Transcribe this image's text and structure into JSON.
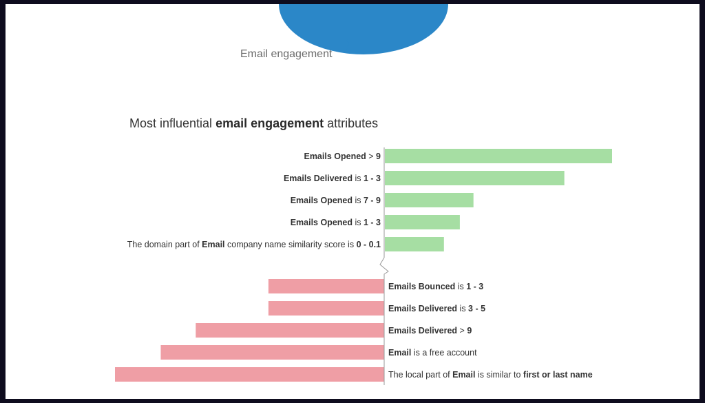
{
  "donut_label": "Email engagement",
  "chart_data": {
    "type": "bar",
    "orientation": "horizontal-diverging",
    "title_parts": [
      {
        "text": "Most influential ",
        "bold": false
      },
      {
        "text": "email engagement",
        "bold": true
      },
      {
        "text": " attributes",
        "bold": false
      }
    ],
    "colors": {
      "positive": "#a6dea3",
      "negative": "#ef9ea5",
      "donut": "#2b87c8",
      "axis": "#9a9a9a"
    },
    "positive": [
      {
        "label_parts": [
          {
            "t": "Emails Opened",
            "b": true
          },
          {
            "t": " > ",
            "b": false
          },
          {
            "t": "9",
            "b": true
          }
        ],
        "value": 1.0
      },
      {
        "label_parts": [
          {
            "t": "Emails Delivered",
            "b": true
          },
          {
            "t": " is ",
            "b": false
          },
          {
            "t": "1 - 3",
            "b": true
          }
        ],
        "value": 0.79
      },
      {
        "label_parts": [
          {
            "t": "Emails Opened",
            "b": true
          },
          {
            "t": " is ",
            "b": false
          },
          {
            "t": "7 - 9",
            "b": true
          }
        ],
        "value": 0.39
      },
      {
        "label_parts": [
          {
            "t": "Emails Opened",
            "b": true
          },
          {
            "t": " is ",
            "b": false
          },
          {
            "t": "1 - 3",
            "b": true
          }
        ],
        "value": 0.33
      },
      {
        "label_parts": [
          {
            "t": "The domain part of ",
            "b": false
          },
          {
            "t": "Email",
            "b": true
          },
          {
            "t": " company name similarity score is ",
            "b": false
          },
          {
            "t": "0 - 0.1",
            "b": true
          }
        ],
        "value": 0.26
      }
    ],
    "negative": [
      {
        "label_parts": [
          {
            "t": "Emails Bounced",
            "b": true
          },
          {
            "t": " is ",
            "b": false
          },
          {
            "t": "1 - 3",
            "b": true
          }
        ],
        "value": 0.43
      },
      {
        "label_parts": [
          {
            "t": "Emails Delivered",
            "b": true
          },
          {
            "t": " is ",
            "b": false
          },
          {
            "t": "3 - 5",
            "b": true
          }
        ],
        "value": 0.43
      },
      {
        "label_parts": [
          {
            "t": "Emails Delivered",
            "b": true
          },
          {
            "t": " > ",
            "b": false
          },
          {
            "t": "9",
            "b": true
          }
        ],
        "value": 0.7
      },
      {
        "label_parts": [
          {
            "t": "Email",
            "b": true
          },
          {
            "t": " is a free account",
            "b": false
          }
        ],
        "value": 0.83
      },
      {
        "label_parts": [
          {
            "t": "The local part of ",
            "b": false
          },
          {
            "t": "Email",
            "b": true
          },
          {
            "t": " is similar to ",
            "b": false
          },
          {
            "t": "first or last name",
            "b": true
          }
        ],
        "value": 1.0
      }
    ]
  }
}
